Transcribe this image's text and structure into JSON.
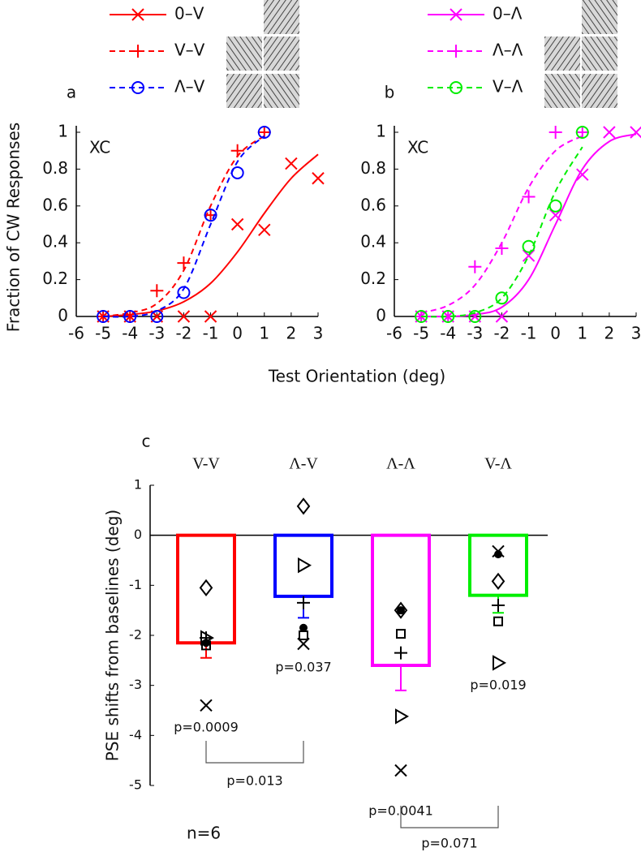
{
  "chart_data": [
    {
      "type": "line",
      "panel": "a",
      "annotation": "XC",
      "ylabel": "Fraction of CW Responses",
      "xlabel": "Test Orientation (deg)",
      "xlim": [
        -6,
        3
      ],
      "xticks": [
        -6,
        -5,
        -4,
        -3,
        -2,
        -1,
        0,
        1,
        2,
        3
      ],
      "ylim": [
        0,
        1
      ],
      "yticks": [
        0,
        0.2,
        0.4,
        0.6,
        0.8,
        1
      ],
      "series": [
        {
          "name": "0–V",
          "color": "#ff0000",
          "marker": "x",
          "dash": false,
          "x": [
            -5,
            -4,
            -3,
            -2,
            -1,
            0,
            1,
            2,
            3
          ],
          "values": [
            0,
            0,
            0,
            0,
            0,
            0.5,
            0.47,
            0.83,
            0.75
          ],
          "fit": {
            "x": [
              -5,
              -4,
              -3,
              -2,
              -1,
              0,
              1,
              2,
              3
            ],
            "values": [
              0,
              0.01,
              0.03,
              0.08,
              0.18,
              0.35,
              0.56,
              0.75,
              0.88
            ]
          }
        },
        {
          "name": "V–V",
          "color": "#ff0000",
          "marker": "+",
          "dash": true,
          "x": [
            -5,
            -4,
            -3,
            -2,
            -1,
            0,
            1
          ],
          "values": [
            0,
            0,
            0.14,
            0.29,
            0.55,
            0.9,
            1
          ],
          "fit": {
            "x": [
              -5,
              -4,
              -3,
              -2,
              -1,
              0,
              1
            ],
            "values": [
              0,
              0.02,
              0.07,
              0.25,
              0.6,
              0.87,
              0.98
            ]
          }
        },
        {
          "name": "Λ–V",
          "color": "#0000ff",
          "marker": "o",
          "dash": true,
          "x": [
            -5,
            -4,
            -3,
            -2,
            -1,
            0,
            1
          ],
          "values": [
            0,
            0,
            0,
            0.13,
            0.55,
            0.78,
            1
          ],
          "fit": {
            "x": [
              -5,
              -4,
              -3,
              -2,
              -1,
              0,
              1
            ],
            "values": [
              0,
              0,
              0.03,
              0.15,
              0.5,
              0.84,
              0.98
            ]
          }
        }
      ]
    },
    {
      "type": "line",
      "panel": "b",
      "annotation": "XC",
      "xlim": [
        -6,
        3
      ],
      "xticks": [
        -6,
        -5,
        -4,
        -3,
        -2,
        -1,
        0,
        1,
        2,
        3
      ],
      "ylim": [
        0,
        1
      ],
      "yticks": [
        0,
        0.2,
        0.4,
        0.6,
        0.8,
        1
      ],
      "series": [
        {
          "name": "0–Λ",
          "color": "#ff00ff",
          "marker": "x",
          "dash": false,
          "x": [
            -5,
            -4,
            -3,
            -2,
            -1,
            0,
            1,
            2,
            3
          ],
          "values": [
            0,
            0,
            0,
            0,
            0.33,
            0.55,
            0.77,
            1,
            1
          ],
          "fit": {
            "x": [
              -5,
              -4,
              -3,
              -2,
              -1,
              0,
              1,
              2,
              3
            ],
            "values": [
              0,
              0,
              0.01,
              0.05,
              0.2,
              0.5,
              0.8,
              0.95,
              0.99
            ]
          }
        },
        {
          "name": "Λ–Λ",
          "color": "#ff00ff",
          "marker": "+",
          "dash": true,
          "x": [
            -5,
            -4,
            -3,
            -2,
            -1,
            0,
            1
          ],
          "values": [
            0,
            0,
            0.27,
            0.37,
            0.65,
            1,
            1
          ],
          "fit": {
            "x": [
              -5,
              -4,
              -3,
              -2,
              -1,
              0,
              1
            ],
            "values": [
              0.02,
              0.06,
              0.17,
              0.4,
              0.7,
              0.9,
              0.98
            ]
          }
        },
        {
          "name": "V–Λ",
          "color": "#00ee00",
          "marker": "o",
          "dash": true,
          "x": [
            -5,
            -4,
            -3,
            -2,
            -1,
            0,
            1
          ],
          "values": [
            0,
            0,
            0,
            0.1,
            0.38,
            0.6,
            1
          ],
          "fit": {
            "x": [
              -5,
              -4,
              -3,
              -2,
              -1,
              0,
              1
            ],
            "values": [
              0,
              0,
              0.02,
              0.1,
              0.33,
              0.68,
              0.92
            ]
          }
        }
      ]
    },
    {
      "type": "bar",
      "panel": "c",
      "ylabel": "PSE shifts from baselines (deg)",
      "note": "n=6",
      "ylim": [
        -5,
        1
      ],
      "yticks": [
        -5,
        -4,
        -3,
        -2,
        -1,
        0,
        1
      ],
      "categories": [
        "V-V",
        "Λ-V",
        "Λ-Λ",
        "V-Λ"
      ],
      "colors": [
        "#ff0000",
        "#0000ff",
        "#ff00ff",
        "#00ee00"
      ],
      "values": [
        -2.15,
        -1.22,
        -2.6,
        -1.2
      ],
      "errors": [
        0.3,
        0.43,
        0.5,
        0.35
      ],
      "value_labels": [
        "p=0.0009",
        "p=0.037",
        "p=0.0041",
        "p=0.019"
      ],
      "subjects": [
        {
          "marker": "diamond",
          "values": [
            -1.05,
            0.58,
            -1.5,
            -0.92
          ]
        },
        {
          "marker": "triangle",
          "values": [
            -2.05,
            -0.6,
            -3.62,
            -2.55
          ]
        },
        {
          "marker": "square",
          "values": [
            -2.2,
            -2.0,
            -1.97,
            -1.72
          ]
        },
        {
          "marker": "x",
          "values": [
            -3.4,
            -2.17,
            -4.7,
            -0.32
          ]
        },
        {
          "marker": "+",
          "values": [
            -2.05,
            -1.35,
            -2.35,
            -1.4
          ]
        },
        {
          "marker": "dot",
          "values": [
            -2.15,
            -1.85,
            -1.5,
            -0.38
          ]
        }
      ],
      "comparisons": [
        {
          "between": [
            "V-V",
            "Λ-V"
          ],
          "label": "p=0.013"
        },
        {
          "between": [
            "Λ-Λ",
            "V-Λ"
          ],
          "label": "p=0.071"
        }
      ]
    }
  ]
}
